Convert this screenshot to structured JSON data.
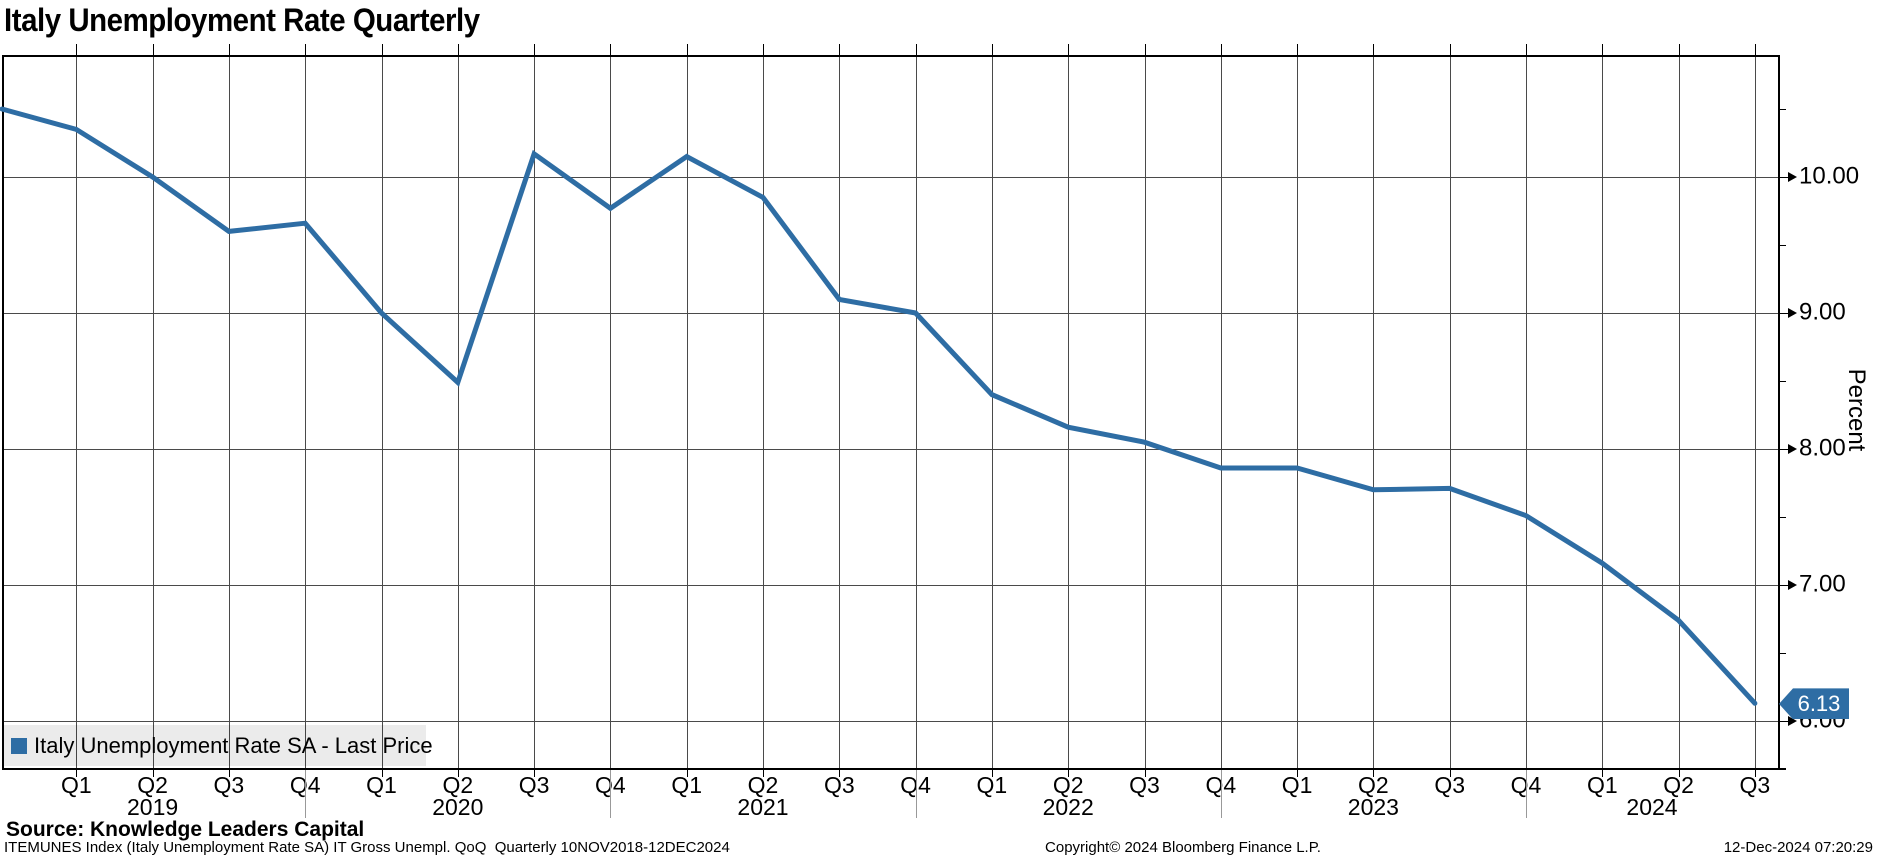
{
  "title": "Italy Unemployment Rate Quarterly",
  "legend": {
    "swatch_icon": "blue-square",
    "label": "Italy Unemployment Rate SA - Last Price",
    "swatch_color": "#2e6da4"
  },
  "last_price_badge": {
    "value": "6.13",
    "fill_color": "#2e6da4",
    "text_color": "#ffffff"
  },
  "footer": {
    "source": "Source: Knowledge Leaders Capital",
    "description": "ITEMUNES Index (Italy Unemployment Rate SA) IT Gross Unempl. QoQ  Quarterly 10NOV2018-12DEC2024",
    "copyright": "Copyright© 2024 Bloomberg Finance L.P.",
    "timestamp": "12-Dec-2024 07:20:29"
  },
  "chart_data": {
    "type": "line",
    "title": "Italy Unemployment Rate Quarterly",
    "xlabel": "",
    "ylabel": "Percent",
    "ylim": [
      5.65,
      10.9
    ],
    "grid": true,
    "legend_position": "bottom-left",
    "line_color": "#2e6da4",
    "series_name": "Italy Unemployment Rate SA - Last Price",
    "x": [
      "2018 Q4",
      "2019 Q1",
      "2019 Q2",
      "2019 Q3",
      "2019 Q4",
      "2020 Q1",
      "2020 Q2",
      "2020 Q3",
      "2020 Q4",
      "2021 Q1",
      "2021 Q2",
      "2021 Q3",
      "2021 Q4",
      "2022 Q1",
      "2022 Q2",
      "2022 Q3",
      "2022 Q4",
      "2023 Q1",
      "2023 Q2",
      "2023 Q3",
      "2023 Q4",
      "2024 Q1",
      "2024 Q2",
      "2024 Q3"
    ],
    "values": [
      10.5,
      10.35,
      10.0,
      9.6,
      9.66,
      9.0,
      8.49,
      10.17,
      9.77,
      10.15,
      9.85,
      9.1,
      9.0,
      8.4,
      8.16,
      8.05,
      7.86,
      7.86,
      7.7,
      7.71,
      7.51,
      7.16,
      6.74,
      6.13
    ],
    "last_price": 6.13,
    "quarter_tick_labels": [
      "Q1",
      "Q2",
      "Q3",
      "Q4",
      "Q1",
      "Q2",
      "Q3",
      "Q4",
      "Q1",
      "Q2",
      "Q3",
      "Q4",
      "Q1",
      "Q2",
      "Q3",
      "Q4",
      "Q1",
      "Q2",
      "Q3",
      "Q4",
      "Q1",
      "Q2",
      "Q3"
    ],
    "year_labels": [
      "2019",
      "2020",
      "2021",
      "2022",
      "2023",
      "2024"
    ],
    "y_ticks": [
      {
        "label": "10.00",
        "value": 10.0
      },
      {
        "label": "9.00",
        "value": 9.0
      },
      {
        "label": "8.00",
        "value": 8.0
      },
      {
        "label": "7.00",
        "value": 7.0
      },
      {
        "label": "6.00",
        "value": 6.0
      }
    ],
    "y_minor_ticks": [
      10.5,
      9.5,
      8.5,
      7.5,
      6.5
    ]
  }
}
